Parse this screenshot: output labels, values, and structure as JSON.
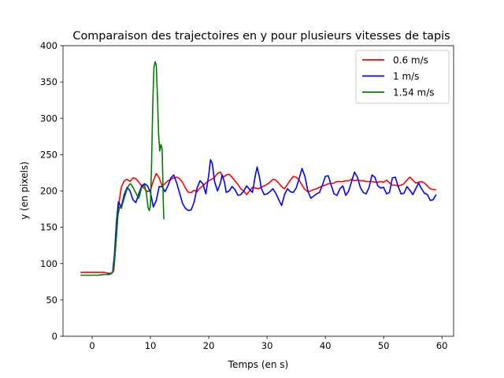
{
  "chart_data": {
    "type": "line",
    "title": "Comparaison des trajectoires en y pour plusieurs vitesses de tapis",
    "xlabel": "Temps (en s)",
    "ylabel": "y (en pixels)",
    "xlim": [
      -5,
      62
    ],
    "ylim": [
      0,
      400
    ],
    "xticks": [
      0,
      10,
      20,
      30,
      40,
      50,
      60
    ],
    "yticks": [
      0,
      50,
      100,
      150,
      200,
      250,
      300,
      350,
      400
    ],
    "grid": false,
    "legend_position": "top-right",
    "series": [
      {
        "name": "0.6 m/s",
        "color": "#ff0000",
        "points": [
          [
            -2,
            88
          ],
          [
            0,
            88
          ],
          [
            2,
            88
          ],
          [
            2.7,
            87
          ],
          [
            3.3,
            86
          ],
          [
            3.7,
            90
          ],
          [
            4,
            120
          ],
          [
            4.5,
            178
          ],
          [
            5,
            205
          ],
          [
            5.5,
            214
          ],
          [
            6,
            216
          ],
          [
            6.5,
            213
          ],
          [
            7,
            218
          ],
          [
            7.5,
            217
          ],
          [
            8,
            212
          ],
          [
            8.5,
            207
          ],
          [
            9,
            203
          ],
          [
            9.5,
            199
          ],
          [
            10,
            201
          ],
          [
            10.5,
            214
          ],
          [
            11,
            224
          ],
          [
            11.5,
            218
          ],
          [
            12,
            207
          ],
          [
            12.5,
            210
          ],
          [
            13,
            214
          ],
          [
            13.5,
            216
          ],
          [
            14,
            218
          ],
          [
            14.5,
            219
          ],
          [
            15,
            217
          ],
          [
            15.5,
            212
          ],
          [
            16,
            204
          ],
          [
            16.5,
            198
          ],
          [
            17,
            198
          ],
          [
            17.5,
            201
          ],
          [
            18,
            199
          ],
          [
            18.5,
            204
          ],
          [
            19,
            207
          ],
          [
            19.5,
            211
          ],
          [
            20,
            214
          ],
          [
            20.5,
            216
          ],
          [
            21,
            219
          ],
          [
            21.5,
            224
          ],
          [
            22,
            226
          ],
          [
            22.5,
            219
          ],
          [
            23,
            222
          ],
          [
            23.5,
            223
          ],
          [
            24,
            219
          ],
          [
            24.5,
            214
          ],
          [
            25,
            209
          ],
          [
            25.5,
            203
          ],
          [
            26,
            200
          ],
          [
            26.5,
            195
          ],
          [
            27,
            200
          ],
          [
            27.5,
            205
          ],
          [
            28,
            204
          ],
          [
            28.5,
            203
          ],
          [
            29,
            205
          ],
          [
            29.5,
            207
          ],
          [
            30,
            209
          ],
          [
            30.5,
            212
          ],
          [
            31,
            216
          ],
          [
            31.5,
            215
          ],
          [
            32,
            211
          ],
          [
            32.5,
            206
          ],
          [
            33,
            203
          ],
          [
            33.5,
            209
          ],
          [
            34,
            215
          ],
          [
            34.5,
            220
          ],
          [
            35,
            219
          ],
          [
            35.5,
            215
          ],
          [
            36,
            208
          ],
          [
            36.5,
            202
          ],
          [
            37,
            199
          ],
          [
            37.5,
            200
          ],
          [
            38,
            202
          ],
          [
            38.5,
            203
          ],
          [
            39,
            205
          ],
          [
            39.5,
            207
          ],
          [
            40,
            208
          ],
          [
            40.5,
            210
          ],
          [
            41,
            210
          ],
          [
            41.5,
            211
          ],
          [
            42,
            213
          ],
          [
            42.5,
            213
          ],
          [
            43,
            213
          ],
          [
            43.5,
            214
          ],
          [
            44,
            214
          ],
          [
            44.5,
            216
          ],
          [
            45,
            214
          ],
          [
            45.5,
            215
          ],
          [
            46,
            214
          ],
          [
            46.5,
            214
          ],
          [
            47,
            213
          ],
          [
            47.5,
            213
          ],
          [
            48,
            213
          ],
          [
            48.5,
            212
          ],
          [
            49,
            212
          ],
          [
            49.5,
            213
          ],
          [
            50,
            212
          ],
          [
            50.5,
            215
          ],
          [
            51,
            211
          ],
          [
            51.5,
            208
          ],
          [
            52,
            208
          ],
          [
            52.5,
            207
          ],
          [
            53,
            208
          ],
          [
            53.5,
            210
          ],
          [
            54,
            215
          ],
          [
            54.5,
            219
          ],
          [
            55,
            215
          ],
          [
            55.5,
            211
          ],
          [
            56,
            212
          ],
          [
            56.5,
            213
          ],
          [
            57,
            211
          ],
          [
            57.5,
            207
          ],
          [
            58,
            203
          ],
          [
            58.5,
            202
          ],
          [
            59,
            202
          ]
        ]
      },
      {
        "name": "1 m/s",
        "color": "#0000ff",
        "points": [
          [
            2.5,
            85
          ],
          [
            3,
            86
          ],
          [
            3.5,
            88
          ],
          [
            3.8,
            110
          ],
          [
            4.2,
            160
          ],
          [
            4.5,
            185
          ],
          [
            5,
            178
          ],
          [
            5.5,
            195
          ],
          [
            6,
            205
          ],
          [
            6.5,
            200
          ],
          [
            7,
            188
          ],
          [
            7.5,
            184
          ],
          [
            8,
            196
          ],
          [
            8.5,
            207
          ],
          [
            9,
            210
          ],
          [
            9.5,
            207
          ],
          [
            10,
            198
          ],
          [
            10.5,
            178
          ],
          [
            11,
            187
          ],
          [
            11.5,
            206
          ],
          [
            12,
            206
          ],
          [
            12.5,
            199
          ],
          [
            13,
            207
          ],
          [
            13.5,
            218
          ],
          [
            14,
            222
          ],
          [
            14.5,
            211
          ],
          [
            15,
            197
          ],
          [
            15.5,
            183
          ],
          [
            16,
            176
          ],
          [
            16.5,
            173
          ],
          [
            17,
            174
          ],
          [
            17.5,
            185
          ],
          [
            18,
            204
          ],
          [
            18.5,
            214
          ],
          [
            19,
            210
          ],
          [
            19.5,
            196
          ],
          [
            20,
            222
          ],
          [
            20.3,
            243
          ],
          [
            20.6,
            238
          ],
          [
            21,
            213
          ],
          [
            21.5,
            200
          ],
          [
            22,
            211
          ],
          [
            22.3,
            222
          ],
          [
            22.7,
            212
          ],
          [
            23,
            198
          ],
          [
            23.5,
            200
          ],
          [
            24,
            206
          ],
          [
            24.5,
            202
          ],
          [
            25,
            194
          ],
          [
            25.5,
            195
          ],
          [
            26,
            200
          ],
          [
            26.5,
            207
          ],
          [
            27,
            202
          ],
          [
            27.5,
            198
          ],
          [
            28,
            222
          ],
          [
            28.3,
            233
          ],
          [
            28.7,
            219
          ],
          [
            29,
            204
          ],
          [
            29.5,
            195
          ],
          [
            30,
            196
          ],
          [
            30.5,
            199
          ],
          [
            31,
            203
          ],
          [
            31.5,
            197
          ],
          [
            32,
            188
          ],
          [
            32.5,
            180
          ],
          [
            33,
            195
          ],
          [
            33.5,
            203
          ],
          [
            34,
            199
          ],
          [
            34.5,
            198
          ],
          [
            35,
            204
          ],
          [
            35.5,
            217
          ],
          [
            36,
            231
          ],
          [
            36.5,
            220
          ],
          [
            37,
            200
          ],
          [
            37.5,
            190
          ],
          [
            38,
            193
          ],
          [
            38.5,
            196
          ],
          [
            39,
            198
          ],
          [
            39.5,
            208
          ],
          [
            40,
            220
          ],
          [
            40.5,
            221
          ],
          [
            41,
            208
          ],
          [
            41.5,
            196
          ],
          [
            42,
            194
          ],
          [
            42.5,
            203
          ],
          [
            43,
            207
          ],
          [
            43.5,
            194
          ],
          [
            44,
            200
          ],
          [
            44.5,
            213
          ],
          [
            45,
            226
          ],
          [
            45.5,
            219
          ],
          [
            46,
            205
          ],
          [
            46.5,
            198
          ],
          [
            47,
            196
          ],
          [
            47.5,
            205
          ],
          [
            48,
            222
          ],
          [
            48.5,
            219
          ],
          [
            49,
            207
          ],
          [
            49.5,
            204
          ],
          [
            50,
            205
          ],
          [
            50.5,
            196
          ],
          [
            51,
            198
          ],
          [
            51.5,
            218
          ],
          [
            52,
            219
          ],
          [
            52.5,
            206
          ],
          [
            53,
            196
          ],
          [
            53.5,
            197
          ],
          [
            54,
            206
          ],
          [
            54.5,
            201
          ],
          [
            55,
            195
          ],
          [
            55.5,
            203
          ],
          [
            56,
            211
          ],
          [
            56.5,
            203
          ],
          [
            57,
            197
          ],
          [
            57.5,
            195
          ],
          [
            58,
            187
          ],
          [
            58.5,
            188
          ],
          [
            59,
            195
          ]
        ]
      },
      {
        "name": "1.54 m/s",
        "color": "#008000",
        "points": [
          [
            -2,
            84
          ],
          [
            0,
            84
          ],
          [
            1,
            84
          ],
          [
            2,
            85
          ],
          [
            3,
            85
          ],
          [
            3.5,
            88
          ],
          [
            3.8,
            100
          ],
          [
            4.1,
            130
          ],
          [
            4.4,
            165
          ],
          [
            4.7,
            178
          ],
          [
            5,
            176
          ],
          [
            5.5,
            190
          ],
          [
            6,
            203
          ],
          [
            6.3,
            208
          ],
          [
            6.6,
            210
          ],
          [
            7,
            205
          ],
          [
            7.5,
            197
          ],
          [
            8,
            190
          ],
          [
            8.5,
            205
          ],
          [
            9,
            208
          ],
          [
            9.3,
            197
          ],
          [
            9.6,
            177
          ],
          [
            9.8,
            173
          ],
          [
            10,
            180
          ],
          [
            10.2,
            240
          ],
          [
            10.4,
            320
          ],
          [
            10.6,
            370
          ],
          [
            10.8,
            378
          ],
          [
            11,
            373
          ],
          [
            11.2,
            330
          ],
          [
            11.4,
            278
          ],
          [
            11.6,
            255
          ],
          [
            11.8,
            264
          ],
          [
            12,
            258
          ],
          [
            12.1,
            225
          ],
          [
            12.2,
            185
          ],
          [
            12.3,
            161
          ]
        ]
      }
    ]
  }
}
